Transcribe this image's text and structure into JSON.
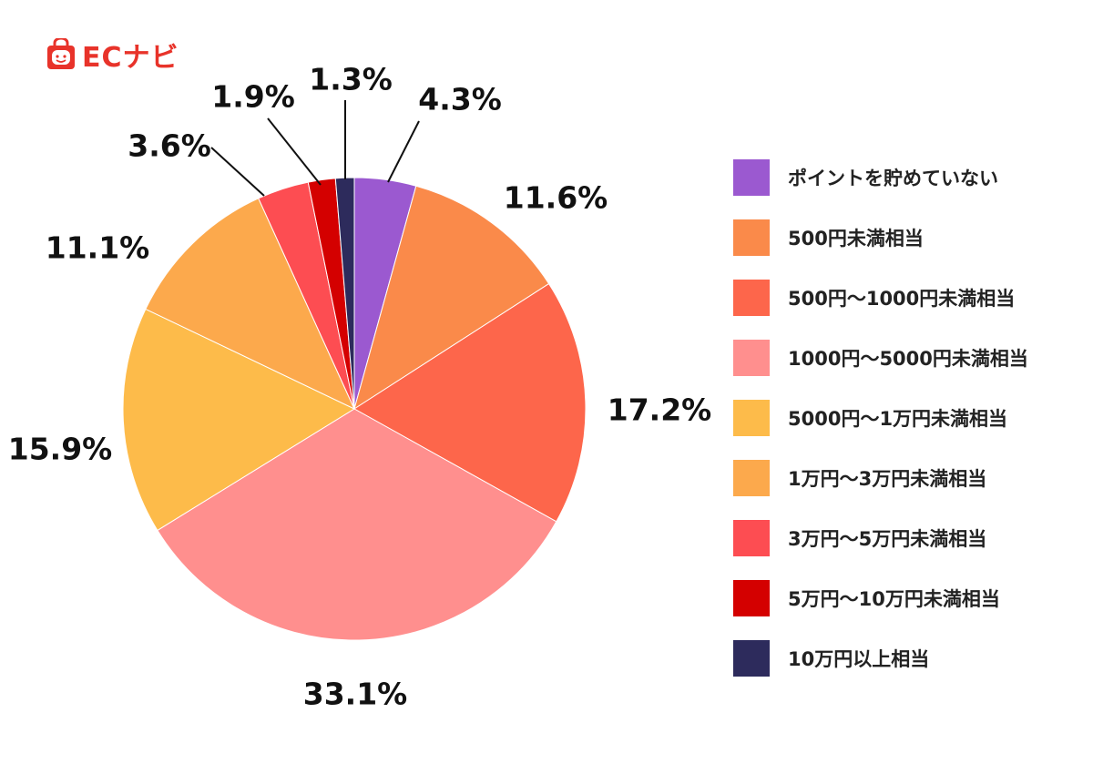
{
  "logo": {
    "text": "ECナビ"
  },
  "chart_data": {
    "type": "pie",
    "categories": [
      "ポイントを貯めていない",
      "500円未満相当",
      "500円〜1000円未満相当",
      "1000円〜5000円未満相当",
      "5000円〜1万円未満相当",
      "1万円〜3万円未満相当",
      "3万円〜5万円未満相当",
      "5万円〜10万円未満相当",
      "10万円以上相当"
    ],
    "values": [
      4.3,
      11.6,
      17.2,
      33.1,
      15.9,
      11.1,
      3.6,
      1.9,
      1.3
    ],
    "labels": [
      "4.3%",
      "11.6%",
      "17.2%",
      "33.1%",
      "15.9%",
      "11.1%",
      "3.6%",
      "1.9%",
      "1.3%"
    ],
    "colors": [
      "#9b59d0",
      "#fa8a4a",
      "#fd664b",
      "#ff8f8e",
      "#fdbb4a",
      "#fca94c",
      "#fd4d52",
      "#d40000",
      "#2d2b5c"
    ],
    "legend_position": "right",
    "start_angle": "top",
    "direction": "clockwise"
  }
}
